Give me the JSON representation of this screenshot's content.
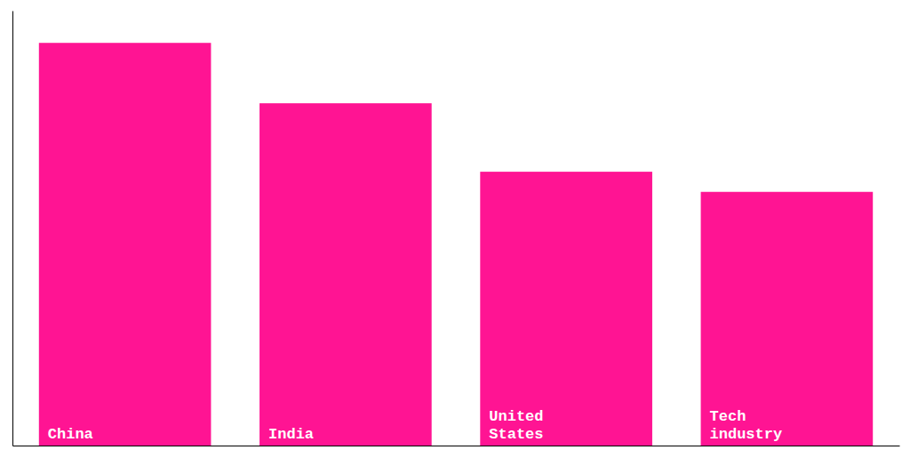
{
  "chart_data": {
    "type": "bar",
    "categories": [
      "China",
      "India",
      "United\nStates",
      "Tech\nindustry"
    ],
    "values": [
      100,
      85,
      68,
      63
    ],
    "color": "#FF1493",
    "ylim": [
      0,
      108
    ],
    "tick_labels": false,
    "grid": false
  }
}
